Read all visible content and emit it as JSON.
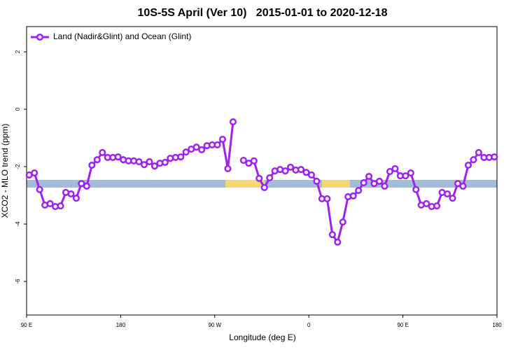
{
  "chart_data": {
    "type": "line",
    "title": "10S-5S April (Ver 10)   2015-01-01 to 2020-12-18",
    "x_label": "Longitude (deg E)",
    "y_label": "XCO2 - MLO trend (ppm)",
    "xlim": [
      90,
      540
    ],
    "xticks": [
      {
        "value": 90,
        "label": "90 E"
      },
      {
        "value": 180,
        "label": "180"
      },
      {
        "value": 270,
        "label": "90 W"
      },
      {
        "value": 360,
        "label": "0"
      },
      {
        "value": 450,
        "label": "90 E"
      },
      {
        "value": 540,
        "label": "180"
      }
    ],
    "ylim": [
      -7.17,
      2.88
    ],
    "yticks": [
      2,
      0,
      -2,
      -4,
      -6
    ],
    "legend": "topleft",
    "x": [
      92.5,
      97.5,
      102.5,
      107.5,
      112.5,
      117.5,
      122.5,
      127.5,
      132.5,
      137.5,
      142.5,
      147.5,
      152.5,
      157.5,
      162.5,
      167.5,
      172.5,
      177.5,
      182.5,
      187.5,
      192.5,
      197.5,
      202.5,
      207.5,
      212.5,
      217.5,
      222.5,
      227.5,
      232.5,
      237.5,
      242.5,
      247.5,
      252.5,
      257.5,
      262.5,
      267.5,
      272.5,
      277.5,
      282.5,
      287.5,
      292.5,
      297.5,
      302.5,
      307.5,
      312.5,
      317.5,
      322.5,
      327.5,
      332.5,
      337.5,
      342.5,
      347.5,
      352.5,
      357.5,
      362.5,
      367.5,
      372.5,
      377.5,
      382.5,
      387.5,
      392.5,
      397.5,
      402.5,
      407.5,
      412.5,
      417.5,
      422.5,
      427.5,
      432.5,
      437.5,
      442.5,
      447.5,
      452.5,
      457.5,
      462.5,
      467.5,
      472.5,
      477.5,
      482.5,
      487.5,
      492.5,
      497.5,
      502.5,
      507.5,
      512.5,
      517.5,
      522.5,
      527.5,
      532.5,
      537.5
    ],
    "series": [
      {
        "name": "Land (Nadir&Glint) and Ocean (Glint)",
        "color": "#a020f0",
        "values": [
          -2.29,
          -2.22,
          -2.8,
          -3.34,
          -3.29,
          -3.39,
          -3.37,
          -2.9,
          -2.95,
          -3.1,
          -2.59,
          -2.68,
          -1.95,
          -1.76,
          -1.51,
          -1.68,
          -1.68,
          -1.66,
          -1.76,
          -1.8,
          -1.8,
          -1.83,
          -1.93,
          -1.83,
          -1.98,
          -1.88,
          -1.85,
          -1.71,
          -1.68,
          -1.66,
          -1.49,
          -1.39,
          -1.32,
          -1.41,
          -1.27,
          -1.24,
          -1.24,
          -1.05,
          -2.07,
          -0.44,
          null,
          -1.78,
          -1.88,
          -1.8,
          -2.41,
          -2.73,
          -2.39,
          -2.15,
          -2.1,
          -2.15,
          -2.02,
          -2.12,
          -2.1,
          -2.2,
          -2.29,
          -2.51,
          -3.12,
          -3.12,
          -4.37,
          -4.63,
          -3.93,
          -3.05,
          -3.02,
          -2.83,
          -2.56,
          -2.34,
          -2.59,
          -2.51,
          -2.68,
          -2.17,
          -2.07,
          -2.32,
          -2.32,
          -2.22,
          -2.8,
          -3.34,
          -3.29,
          -3.39,
          -3.37,
          -2.9,
          -2.95,
          -3.1,
          -2.59,
          -2.68,
          -1.95,
          -1.76,
          -1.51,
          -1.68,
          -1.68,
          -1.66
        ]
      }
    ]
  }
}
